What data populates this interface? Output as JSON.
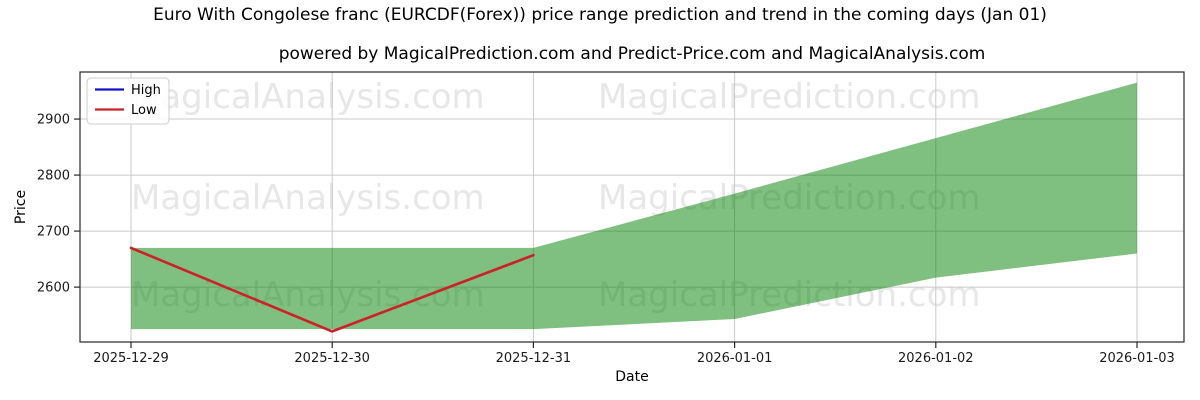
{
  "chart_data": {
    "type": "area-range",
    "title": "Euro With Congolese franc (EURCDF(Forex)) price range prediction and trend in the coming days (Jan 01)",
    "subtitle": "powered by MagicalPrediction.com and Predict-Price.com and MagicalAnalysis.com",
    "xlabel": "Date",
    "ylabel": "Price",
    "categories": [
      "2025-12-29",
      "2025-12-30",
      "2025-12-31",
      "2026-01-01",
      "2026-01-02",
      "2026-01-03"
    ],
    "y_ticks": [
      2600,
      2700,
      2800,
      2900
    ],
    "ylim": [
      2502,
      2984
    ],
    "grid": true,
    "legend": {
      "position": "upper-left",
      "entries": [
        {
          "label": "High",
          "color": "#1414cc"
        },
        {
          "label": "Low",
          "color": "#cc2128"
        }
      ]
    },
    "band": {
      "name": "prediction-range",
      "color": "#008000",
      "opacity": 0.5,
      "high": [
        2670,
        2670,
        2670,
        2767,
        2866,
        2965
      ],
      "low": [
        2525,
        2525,
        2525,
        2543,
        2617,
        2660
      ]
    },
    "low_line": {
      "label": "Low",
      "color": "#cc2128",
      "points": [
        {
          "x": "2025-12-29",
          "y": 2670
        },
        {
          "x": "2025-12-30",
          "y": 2521
        },
        {
          "x": "2025-12-31",
          "y": 2657
        }
      ]
    },
    "watermarks": {
      "left_text": "MagicalAnalysis.com",
      "right_text": "MagicalPrediction.com"
    },
    "colors": {
      "grid": "#c9c9c9",
      "frame": "#262626",
      "watermark": "#e7e7e7",
      "tick_label": "#1a1a1a"
    }
  }
}
